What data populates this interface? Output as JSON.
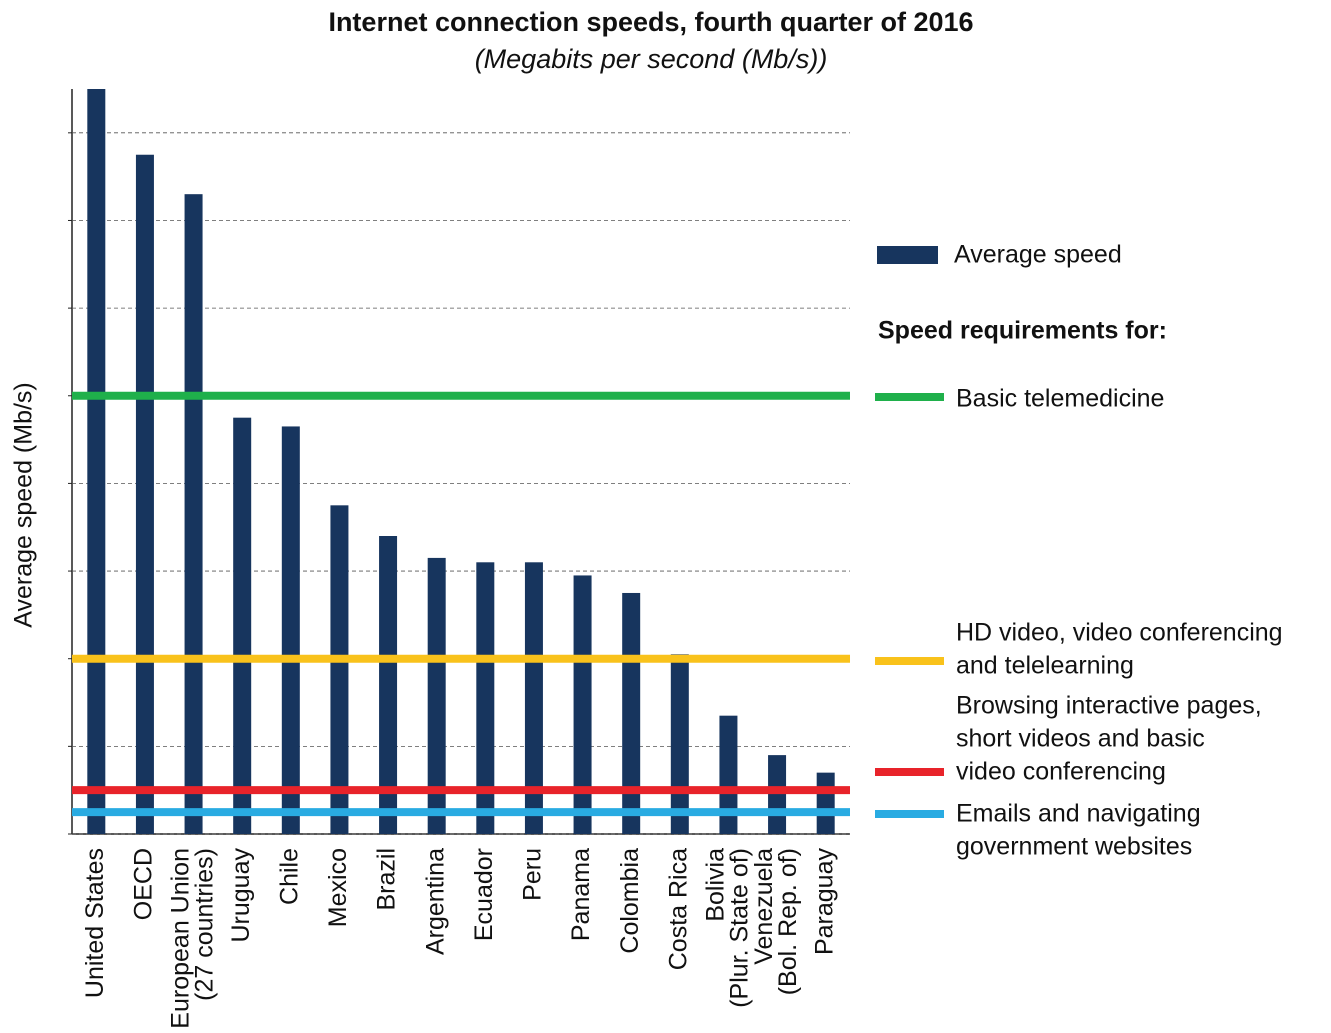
{
  "chart_data": {
    "type": "bar",
    "title": "Internet connection speeds, fourth quarter of 2016",
    "subtitle": "(Megabits per second (Mb/s))",
    "y_label": "Average speed (Mb/s)",
    "categories": [
      "United States",
      "OECD",
      "European Union\n(27 countries)",
      "Uruguay",
      "Chile",
      "Mexico",
      "Brazil",
      "Argentina",
      "Ecuador",
      "Peru",
      "Panama",
      "Colombia",
      "Costa Rica",
      "Bolivia\n(Plur. State of)",
      "Venezuela\n(Bol. Rep. of)",
      "Paraguay"
    ],
    "series": [
      {
        "name": "Average speed",
        "color": "#17355e",
        "values": [
          17.0,
          15.5,
          14.6,
          9.5,
          9.3,
          7.5,
          6.8,
          6.3,
          6.2,
          6.2,
          5.9,
          5.5,
          4.1,
          2.7,
          1.8,
          1.4
        ]
      }
    ],
    "ylim": [
      0,
      17
    ],
    "yticks": [
      0,
      2,
      4,
      6,
      8,
      10,
      12,
      14,
      16
    ],
    "grid": true,
    "legend_heading": "Speed requirements for:",
    "thresholds": [
      {
        "label": [
          "Basic telemedicine"
        ],
        "color": "#1fb04b",
        "value": 10
      },
      {
        "label": [
          "HD video, video conferencing",
          "and telelearning"
        ],
        "color": "#f9c21b",
        "value": 4
      },
      {
        "label": [
          "Browsing interactive pages,",
          "short videos and basic",
          "video conferencing"
        ],
        "color": "#e8232a",
        "value": 1
      },
      {
        "label": [
          "Emails and navigating",
          "government websites"
        ],
        "color": "#29abe2",
        "value": 0.5
      }
    ]
  }
}
